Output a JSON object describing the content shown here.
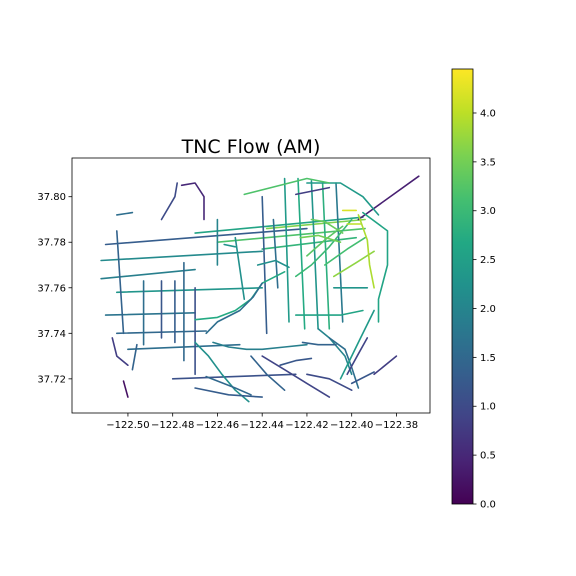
{
  "title": "TNC Flow (AM)",
  "axes": {
    "xlim": [
      -122.525,
      -122.365
    ],
    "ylim": [
      37.705,
      37.817
    ],
    "x_ticks": [
      -122.5,
      -122.48,
      -122.46,
      -122.44,
      -122.42,
      -122.4,
      -122.38
    ],
    "x_tick_labels": [
      "−122.50",
      "−122.48",
      "−122.46",
      "−122.44",
      "−122.42",
      "−122.40",
      "−122.38"
    ],
    "y_ticks": [
      37.72,
      37.74,
      37.76,
      37.78,
      37.8
    ],
    "y_tick_labels": [
      "37.72",
      "37.74",
      "37.76",
      "37.78",
      "37.80"
    ]
  },
  "colorbar": {
    "min": 0.0,
    "max": 4.45,
    "colormap": "viridis",
    "ticks": [
      0.0,
      0.5,
      1.0,
      1.5,
      2.0,
      2.5,
      3.0,
      3.5,
      4.0
    ],
    "tick_labels": [
      "0.0",
      "0.5",
      "1.0",
      "1.5",
      "2.0",
      "2.5",
      "3.0",
      "3.5",
      "4.0"
    ]
  },
  "chart_data": {
    "type": "line",
    "title": "TNC Flow (AM)",
    "xlabel": "",
    "ylabel": "",
    "xlim": [
      -122.525,
      -122.365
    ],
    "ylim": [
      37.705,
      37.817
    ],
    "color_scale": [
      0.0,
      4.45
    ],
    "segments": [
      {
        "points": [
          [
            -122.512,
            37.764
          ],
          [
            -122.47,
            37.768
          ]
        ],
        "value": 1.9
      },
      {
        "points": [
          [
            -122.512,
            37.772
          ],
          [
            -122.44,
            37.776
          ]
        ],
        "value": 2.1
      },
      {
        "points": [
          [
            -122.51,
            37.779
          ],
          [
            -122.42,
            37.786
          ]
        ],
        "value": 1.3
      },
      {
        "points": [
          [
            -122.47,
            37.784
          ],
          [
            -122.395,
            37.791
          ]
        ],
        "value": 2.6
      },
      {
        "points": [
          [
            -122.46,
            37.78
          ],
          [
            -122.394,
            37.786
          ]
        ],
        "value": 3.2
      },
      {
        "points": [
          [
            -122.438,
            37.786
          ],
          [
            -122.394,
            37.79
          ]
        ],
        "value": 3.6
      },
      {
        "points": [
          [
            -122.44,
            37.777
          ],
          [
            -122.398,
            37.782
          ]
        ],
        "value": 2.9
      },
      {
        "points": [
          [
            -122.505,
            37.758
          ],
          [
            -122.44,
            37.76
          ]
        ],
        "value": 2.3
      },
      {
        "points": [
          [
            -122.51,
            37.748
          ],
          [
            -122.47,
            37.749
          ]
        ],
        "value": 1.7
      },
      {
        "points": [
          [
            -122.505,
            37.74
          ],
          [
            -122.465,
            37.741
          ]
        ],
        "value": 1.5
      },
      {
        "points": [
          [
            -122.5,
            37.733
          ],
          [
            -122.45,
            37.735
          ]
        ],
        "value": 1.6
      },
      {
        "points": [
          [
            -122.48,
            37.72
          ],
          [
            -122.425,
            37.722
          ]
        ],
        "value": 1.1
      },
      {
        "points": [
          [
            -122.505,
            37.785
          ],
          [
            -122.502,
            37.74
          ]
        ],
        "value": 1.4
      },
      {
        "points": [
          [
            -122.493,
            37.763
          ],
          [
            -122.493,
            37.735
          ]
        ],
        "value": 1.6
      },
      {
        "points": [
          [
            -122.485,
            37.763
          ],
          [
            -122.485,
            37.738
          ]
        ],
        "value": 1.2
      },
      {
        "points": [
          [
            -122.479,
            37.763
          ],
          [
            -122.479,
            37.736
          ]
        ],
        "value": 1.3
      },
      {
        "points": [
          [
            -122.475,
            37.771
          ],
          [
            -122.475,
            37.728
          ]
        ],
        "value": 1.5
      },
      {
        "points": [
          [
            -122.47,
            37.76
          ],
          [
            -122.47,
            37.722
          ]
        ],
        "value": 1.1
      },
      {
        "points": [
          [
            -122.498,
            37.724
          ],
          [
            -122.496,
            37.735
          ]
        ],
        "value": 1.4
      },
      {
        "points": [
          [
            -122.43,
            37.808
          ],
          [
            -122.428,
            37.745
          ]
        ],
        "value": 2.4
      },
      {
        "points": [
          [
            -122.424,
            37.808
          ],
          [
            -122.421,
            37.742
          ]
        ],
        "value": 2.7
      },
      {
        "points": [
          [
            -122.418,
            37.807
          ],
          [
            -122.415,
            37.742
          ]
        ],
        "value": 2.3
      },
      {
        "points": [
          [
            -122.413,
            37.806
          ],
          [
            -122.41,
            37.742
          ]
        ],
        "value": 2.8
      },
      {
        "points": [
          [
            -122.407,
            37.806
          ],
          [
            -122.404,
            37.745
          ]
        ],
        "value": 1.8
      },
      {
        "points": [
          [
            -122.44,
            37.8
          ],
          [
            -122.438,
            37.74
          ]
        ],
        "value": 1.3
      },
      {
        "points": [
          [
            -122.452,
            37.782
          ],
          [
            -122.448,
            37.755
          ]
        ],
        "value": 2.2
      },
      {
        "points": [
          [
            -122.435,
            37.79
          ],
          [
            -122.433,
            37.76
          ]
        ],
        "value": 1.6
      },
      {
        "points": [
          [
            -122.397,
            37.79
          ],
          [
            -122.37,
            37.809
          ]
        ],
        "value": 0.4
      },
      {
        "points": [
          [
            -122.395,
            37.793
          ],
          [
            -122.384,
            37.785
          ],
          [
            -122.384,
            37.77
          ],
          [
            -122.388,
            37.755
          ],
          [
            -122.388,
            37.745
          ]
        ],
        "value": 2.6
      },
      {
        "points": [
          [
            -122.4,
            37.79
          ],
          [
            -122.41,
            37.778
          ],
          [
            -122.418,
            37.77
          ],
          [
            -122.425,
            37.765
          ]
        ],
        "value": 3.0
      },
      {
        "points": [
          [
            -122.404,
            37.787
          ],
          [
            -122.412,
            37.781
          ],
          [
            -122.42,
            37.774
          ]
        ],
        "value": 3.3
      },
      {
        "points": [
          [
            -122.394,
            37.782
          ],
          [
            -122.402,
            37.777
          ],
          [
            -122.412,
            37.77
          ]
        ],
        "value": 3.1
      },
      {
        "points": [
          [
            -122.39,
            37.776
          ],
          [
            -122.398,
            37.771
          ],
          [
            -122.408,
            37.765
          ]
        ],
        "value": 3.7
      },
      {
        "points": [
          [
            -122.397,
            37.792
          ],
          [
            -122.393,
            37.781
          ],
          [
            -122.392,
            37.77
          ],
          [
            -122.39,
            37.76
          ]
        ],
        "value": 3.9
      },
      {
        "points": [
          [
            -122.42,
            37.806
          ],
          [
            -122.405,
            37.806
          ],
          [
            -122.395,
            37.8
          ],
          [
            -122.388,
            37.792
          ]
        ],
        "value": 2.4
      },
      {
        "points": [
          [
            -122.448,
            37.801
          ],
          [
            -122.42,
            37.808
          ],
          [
            -122.41,
            37.806
          ]
        ],
        "value": 3.2
      },
      {
        "points": [
          [
            -122.425,
            37.801
          ],
          [
            -122.41,
            37.804
          ]
        ],
        "value": 0.8
      },
      {
        "points": [
          [
            -122.476,
            37.805
          ],
          [
            -122.47,
            37.806
          ],
          [
            -122.466,
            37.8
          ],
          [
            -122.466,
            37.79
          ]
        ],
        "value": 0.5
      },
      {
        "points": [
          [
            -122.478,
            37.806
          ],
          [
            -122.479,
            37.8
          ],
          [
            -122.485,
            37.79
          ]
        ],
        "value": 1.0
      },
      {
        "points": [
          [
            -122.505,
            37.792
          ],
          [
            -122.498,
            37.793
          ]
        ],
        "value": 1.6
      },
      {
        "points": [
          [
            -122.43,
            37.767
          ],
          [
            -122.44,
            37.762
          ],
          [
            -122.445,
            37.755
          ],
          [
            -122.452,
            37.75
          ],
          [
            -122.46,
            37.747
          ],
          [
            -122.47,
            37.746
          ]
        ],
        "value": 2.7
      },
      {
        "points": [
          [
            -122.44,
            37.762
          ],
          [
            -122.444,
            37.756
          ],
          [
            -122.45,
            37.75
          ],
          [
            -122.46,
            37.745
          ],
          [
            -122.465,
            37.74
          ]
        ],
        "value": 1.6
      },
      {
        "points": [
          [
            -122.462,
            37.736
          ],
          [
            -122.455,
            37.734
          ],
          [
            -122.447,
            37.733
          ],
          [
            -122.44,
            37.733
          ],
          [
            -122.43,
            37.734
          ],
          [
            -122.42,
            37.735
          ]
        ],
        "value": 1.9
      },
      {
        "points": [
          [
            -122.44,
            37.73
          ],
          [
            -122.43,
            37.724
          ],
          [
            -122.42,
            37.718
          ],
          [
            -122.41,
            37.712
          ]
        ],
        "value": 0.9
      },
      {
        "points": [
          [
            -122.42,
            37.722
          ],
          [
            -122.41,
            37.72
          ],
          [
            -122.4,
            37.715
          ]
        ],
        "value": 1.0
      },
      {
        "points": [
          [
            -122.445,
            37.73
          ],
          [
            -122.438,
            37.722
          ],
          [
            -122.43,
            37.715
          ]
        ],
        "value": 1.4
      },
      {
        "points": [
          [
            -122.47,
            37.736
          ],
          [
            -122.464,
            37.73
          ],
          [
            -122.458,
            37.722
          ],
          [
            -122.452,
            37.715
          ],
          [
            -122.446,
            37.71
          ]
        ],
        "value": 2.2
      },
      {
        "points": [
          [
            -122.47,
            37.716
          ],
          [
            -122.455,
            37.713
          ],
          [
            -122.44,
            37.712
          ]
        ],
        "value": 1.3
      },
      {
        "points": [
          [
            -122.465,
            37.721
          ],
          [
            -122.452,
            37.716
          ],
          [
            -122.445,
            37.713
          ]
        ],
        "value": 1.5
      },
      {
        "points": [
          [
            -122.415,
            37.742
          ],
          [
            -122.41,
            37.738
          ],
          [
            -122.403,
            37.73
          ],
          [
            -122.4,
            37.722
          ]
        ],
        "value": 2.0
      },
      {
        "points": [
          [
            -122.41,
            37.738
          ],
          [
            -122.403,
            37.733
          ],
          [
            -122.4,
            37.725
          ],
          [
            -122.397,
            37.716
          ]
        ],
        "value": 1.6
      },
      {
        "points": [
          [
            -122.39,
            37.75
          ],
          [
            -122.396,
            37.738
          ],
          [
            -122.401,
            37.728
          ],
          [
            -122.405,
            37.72
          ]
        ],
        "value": 2.4
      },
      {
        "points": [
          [
            -122.393,
            37.738
          ],
          [
            -122.397,
            37.731
          ],
          [
            -122.402,
            37.722
          ]
        ],
        "value": 0.9
      },
      {
        "points": [
          [
            -122.39,
            37.722
          ],
          [
            -122.38,
            37.73
          ]
        ],
        "value": 0.8
      },
      {
        "points": [
          [
            -122.4,
            37.718
          ],
          [
            -122.39,
            37.723
          ]
        ],
        "value": 1.2
      },
      {
        "points": [
          [
            -122.425,
            37.748
          ],
          [
            -122.405,
            37.748
          ],
          [
            -122.395,
            37.75
          ]
        ],
        "value": 2.6
      },
      {
        "points": [
          [
            -122.408,
            37.76
          ],
          [
            -122.393,
            37.76
          ]
        ],
        "value": 2.3
      },
      {
        "points": [
          [
            -122.422,
            37.736
          ],
          [
            -122.415,
            37.735
          ],
          [
            -122.407,
            37.735
          ]
        ],
        "value": 1.4
      },
      {
        "points": [
          [
            -122.432,
            37.726
          ],
          [
            -122.425,
            37.728
          ],
          [
            -122.418,
            37.729
          ]
        ],
        "value": 1.2
      },
      {
        "points": [
          [
            -122.507,
            37.738
          ],
          [
            -122.505,
            37.73
          ],
          [
            -122.5,
            37.726
          ]
        ],
        "value": 0.8
      },
      {
        "points": [
          [
            -122.502,
            37.719
          ],
          [
            -122.5,
            37.712
          ]
        ],
        "value": 0.2
      },
      {
        "points": [
          [
            -122.46,
            37.79
          ],
          [
            -122.46,
            37.77
          ]
        ],
        "value": 2.0
      },
      {
        "points": [
          [
            -122.457,
            37.779
          ],
          [
            -122.452,
            37.778
          ]
        ],
        "value": 2.3
      },
      {
        "points": [
          [
            -122.442,
            37.77
          ],
          [
            -122.434,
            37.772
          ],
          [
            -122.428,
            37.769
          ]
        ],
        "value": 2.2
      },
      {
        "points": [
          [
            -122.418,
            37.79
          ],
          [
            -122.412,
            37.789
          ],
          [
            -122.404,
            37.784
          ]
        ],
        "value": 3.4
      },
      {
        "points": [
          [
            -122.423,
            37.782
          ],
          [
            -122.415,
            37.783
          ],
          [
            -122.405,
            37.78
          ]
        ],
        "value": 3.5
      },
      {
        "points": [
          [
            -122.404,
            37.794
          ],
          [
            -122.398,
            37.794
          ]
        ],
        "value": 4.2
      },
      {
        "points": [
          [
            -122.402,
            37.788
          ],
          [
            -122.396,
            37.788
          ]
        ],
        "value": 4.0
      }
    ]
  }
}
